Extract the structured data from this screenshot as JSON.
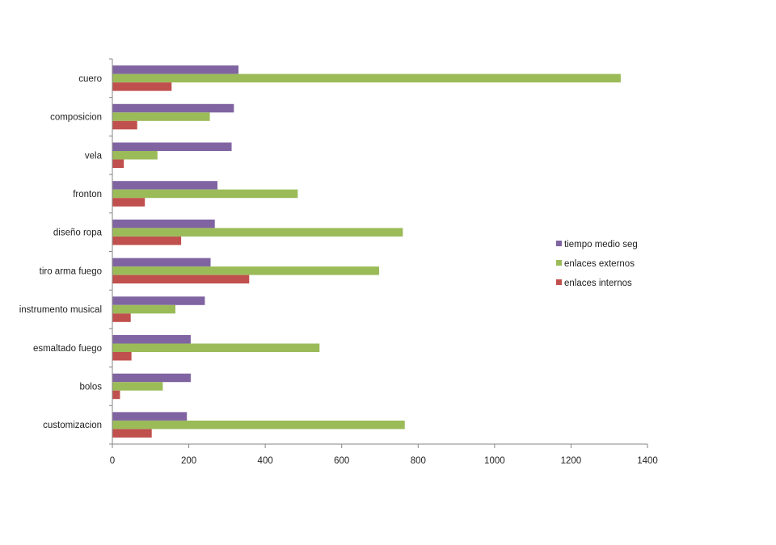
{
  "chart_data": {
    "type": "bar",
    "orientation": "horizontal",
    "categories": [
      "cuero",
      "composicion",
      "vela",
      "fronton",
      "diseño ropa",
      "tiro arma fuego",
      "instrumento musical",
      "esmaltado fuego",
      "bolos",
      "customizacion"
    ],
    "series": [
      {
        "name": "tiempo medio seg",
        "color": "#8064a2",
        "values": [
          330,
          318,
          312,
          275,
          268,
          257,
          242,
          205,
          205,
          195
        ]
      },
      {
        "name": "enlaces externos",
        "color": "#9bbb59",
        "values": [
          1330,
          255,
          118,
          485,
          760,
          698,
          165,
          542,
          132,
          765
        ]
      },
      {
        "name": "enlaces internos",
        "color": "#c0504d",
        "values": [
          155,
          65,
          30,
          85,
          180,
          358,
          48,
          50,
          20,
          103
        ]
      }
    ],
    "xlim": [
      0,
      1400
    ],
    "xticks": [
      0,
      200,
      400,
      600,
      800,
      1000,
      1200,
      1400
    ],
    "xtick_labels": [
      "0",
      "200",
      "400",
      "600",
      "800",
      "1000",
      "1200",
      "1400"
    ],
    "title": "",
    "xlabel": "",
    "ylabel": "",
    "grid": false,
    "legend": "right"
  }
}
